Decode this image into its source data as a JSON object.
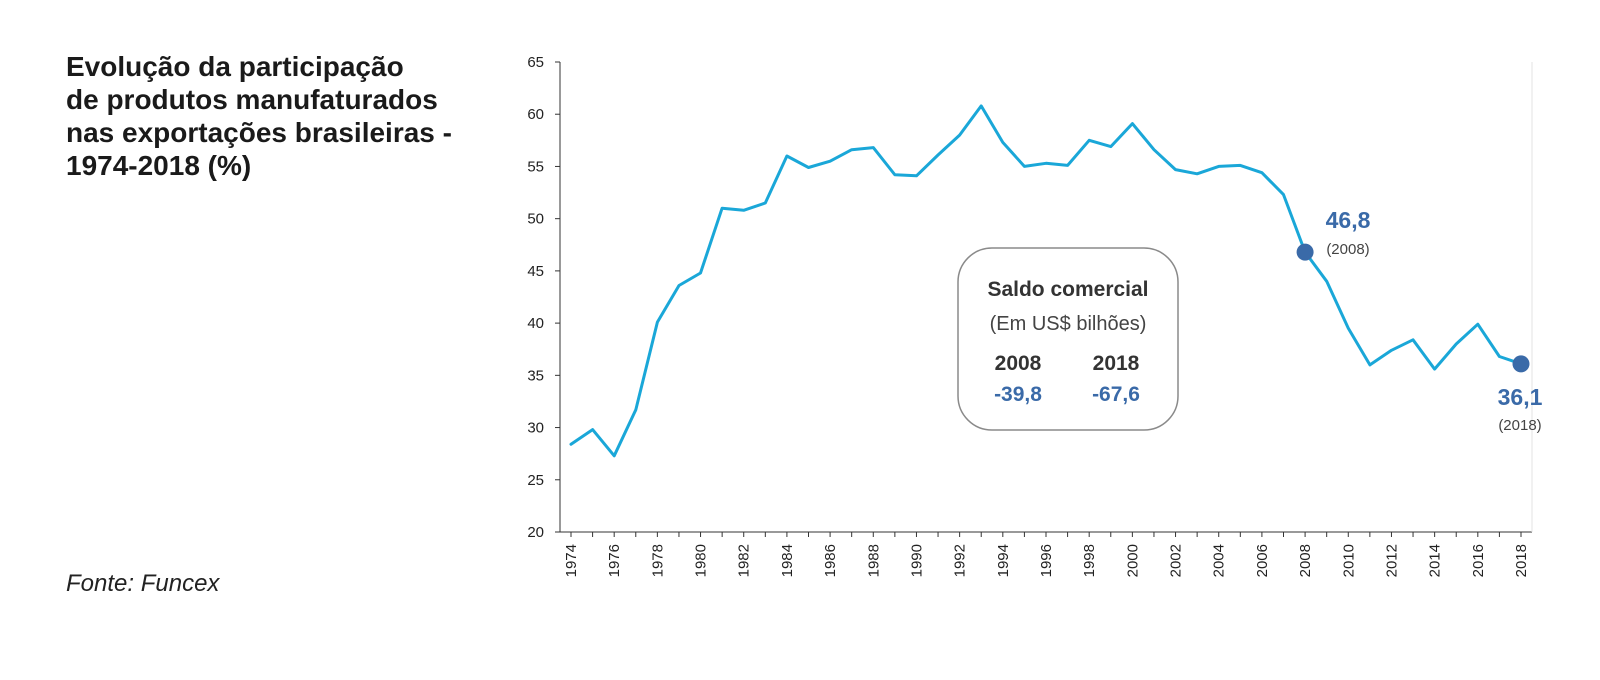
{
  "title_lines": [
    "Evolução da participação",
    "de produtos manufaturados",
    "nas exportações brasileiras -",
    "1974-2018 (%)"
  ],
  "source": "Fonte: Funcex",
  "colors": {
    "line": "#1aa7d8",
    "marker": "#3a6aa8",
    "axis": "#333333"
  },
  "chart_data": {
    "type": "line",
    "title": "Evolução da participação de produtos manufaturados nas exportações brasileiras - 1974-2018 (%)",
    "xlabel": "",
    "ylabel": "",
    "ylim": [
      20,
      65
    ],
    "yticks": [
      "20",
      "25",
      "30",
      "35",
      "40",
      "45",
      "50",
      "55",
      "60",
      "65"
    ],
    "xticks": [
      "1974",
      "1976",
      "1978",
      "1980",
      "1982",
      "1984",
      "1986",
      "1988",
      "1990",
      "1992",
      "1994",
      "1996",
      "1998",
      "2000",
      "2002",
      "2004",
      "2006",
      "2008",
      "2010",
      "2012",
      "2014",
      "2016",
      "2018"
    ],
    "grid": false,
    "legend": "none",
    "series": [
      {
        "x": [
          1974,
          1975,
          1976,
          1977,
          1978,
          1979,
          1980,
          1981,
          1982,
          1983,
          1984,
          1985,
          1986,
          1987,
          1988,
          1989,
          1990,
          1991,
          1992,
          1993,
          1994,
          1995,
          1996,
          1997,
          1998,
          1999,
          2000,
          2001,
          2002,
          2003,
          2004,
          2005,
          2006,
          2007,
          2008,
          2009,
          2010,
          2011,
          2012,
          2013,
          2014,
          2015,
          2016,
          2017,
          2018
        ],
        "values": [
          28.4,
          29.8,
          27.3,
          31.7,
          40.1,
          43.6,
          44.8,
          51.0,
          50.8,
          51.5,
          56.0,
          54.9,
          55.5,
          56.6,
          56.8,
          54.2,
          54.1,
          56.1,
          58.0,
          60.8,
          57.3,
          55.0,
          55.3,
          55.1,
          57.5,
          56.9,
          59.1,
          56.6,
          54.7,
          54.3,
          55.0,
          55.1,
          54.4,
          52.3,
          46.8,
          44.0,
          39.5,
          36.0,
          37.4,
          38.4,
          35.6,
          38.0,
          39.9,
          36.8,
          36.1
        ]
      }
    ],
    "highlights": [
      {
        "x": 2008,
        "y": 46.8,
        "label": "46,8",
        "year": "(2008)"
      },
      {
        "x": 2018,
        "y": 36.1,
        "label": "36,1",
        "year": "(2018)"
      }
    ]
  },
  "trade_box": {
    "title": "Saldo comercial",
    "subtitle": "(Em US$ bilhões)",
    "years": [
      "2008",
      "2018"
    ],
    "values": [
      "-39,8",
      "-67,6"
    ]
  }
}
